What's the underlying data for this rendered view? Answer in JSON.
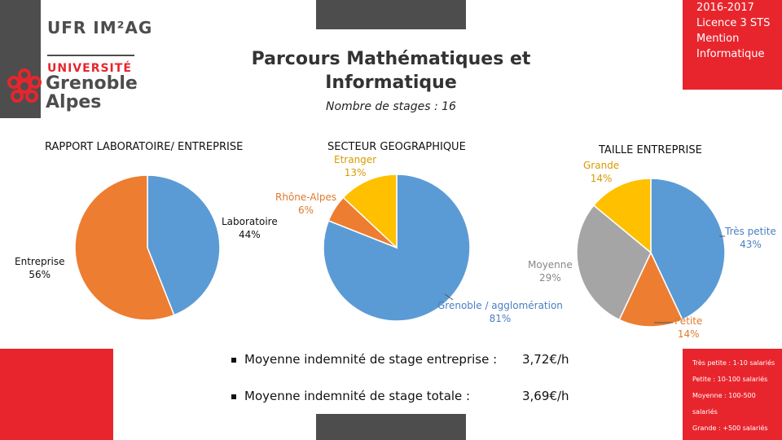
{
  "header": {
    "logo": {
      "ufr": "UFR IM²AG",
      "universite": "UNIVERSITÉ",
      "grenoble": "Grenoble",
      "alpes": "Alpes"
    },
    "red_box": [
      "2016-2017",
      "Licence 3 STS",
      "Mention",
      "Informatique"
    ],
    "title_line1": "Parcours Mathématiques et",
    "title_line2": "Informatique",
    "subtitle": "Nombre de stages : 16"
  },
  "colors": {
    "red": "#e8252d",
    "dark_grey": "#4d4d4d",
    "blue": "#5b9bd5",
    "orange": "#ed7d31",
    "grey": "#a5a5a5",
    "yellow": "#ffc000"
  },
  "chart_data": [
    {
      "type": "pie",
      "title": "RAPPORT LABORATOIRE/ ENTREPRISE",
      "slices": [
        {
          "name": "Laboratoire",
          "value": 44,
          "label": "44%"
        },
        {
          "name": "Entreprise",
          "value": 56,
          "label": "56%"
        }
      ]
    },
    {
      "type": "pie",
      "title": "SECTEUR GEOGRAPHIQUE",
      "slices": [
        {
          "name": "Grenoble / agglomération",
          "value": 81,
          "label": "81%"
        },
        {
          "name": "Rhône-Alpes",
          "value": 6,
          "label": "6%"
        },
        {
          "name": "Etranger",
          "value": 13,
          "label": "13%"
        }
      ]
    },
    {
      "type": "pie",
      "title": "TAILLE ENTREPRISE",
      "slices": [
        {
          "name": "Très petite",
          "value": 43,
          "label": "43%"
        },
        {
          "name": "Petite",
          "value": 14,
          "label": "14%"
        },
        {
          "name": "Moyenne",
          "value": 29,
          "label": "29%"
        },
        {
          "name": "Grande",
          "value": 14,
          "label": "14%"
        }
      ]
    }
  ],
  "stats": [
    {
      "label": "Moyenne indemnité de stage entreprise :",
      "value": "3,72€/h"
    },
    {
      "label": "Moyenne indemnité de stage totale :",
      "value": "3,69€/h"
    }
  ],
  "legend_sizes": [
    "Très petite : 1-10 salariés",
    "Petite : 10-100 salariés",
    "Moyenne : 100-500",
    "salariés",
    "Grande : +500 salariés"
  ]
}
